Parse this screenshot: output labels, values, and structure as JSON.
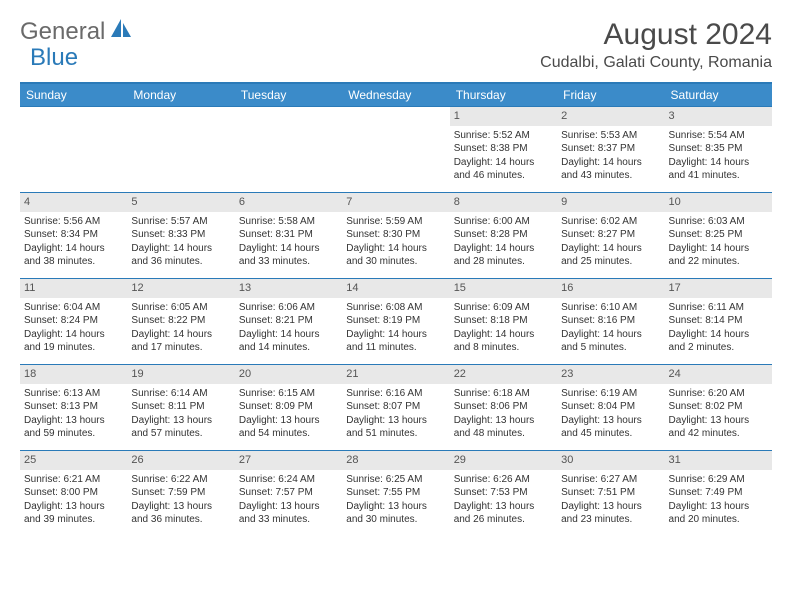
{
  "logo": {
    "text1": "General",
    "text2": "Blue"
  },
  "title": "August 2024",
  "location": "Cudalbi, Galati County, Romania",
  "day_headers": [
    "Sunday",
    "Monday",
    "Tuesday",
    "Wednesday",
    "Thursday",
    "Friday",
    "Saturday"
  ],
  "colors": {
    "brand_blue": "#2a7ab8",
    "header_blue": "#3b8bc9",
    "daynum_bg": "#e8e8e8",
    "text_gray": "#4a4a4a"
  },
  "weeks": [
    [
      null,
      null,
      null,
      null,
      {
        "n": "1",
        "rise": "Sunrise: 5:52 AM",
        "set": "Sunset: 8:38 PM",
        "dl1": "Daylight: 14 hours",
        "dl2": "and 46 minutes."
      },
      {
        "n": "2",
        "rise": "Sunrise: 5:53 AM",
        "set": "Sunset: 8:37 PM",
        "dl1": "Daylight: 14 hours",
        "dl2": "and 43 minutes."
      },
      {
        "n": "3",
        "rise": "Sunrise: 5:54 AM",
        "set": "Sunset: 8:35 PM",
        "dl1": "Daylight: 14 hours",
        "dl2": "and 41 minutes."
      }
    ],
    [
      {
        "n": "4",
        "rise": "Sunrise: 5:56 AM",
        "set": "Sunset: 8:34 PM",
        "dl1": "Daylight: 14 hours",
        "dl2": "and 38 minutes."
      },
      {
        "n": "5",
        "rise": "Sunrise: 5:57 AM",
        "set": "Sunset: 8:33 PM",
        "dl1": "Daylight: 14 hours",
        "dl2": "and 36 minutes."
      },
      {
        "n": "6",
        "rise": "Sunrise: 5:58 AM",
        "set": "Sunset: 8:31 PM",
        "dl1": "Daylight: 14 hours",
        "dl2": "and 33 minutes."
      },
      {
        "n": "7",
        "rise": "Sunrise: 5:59 AM",
        "set": "Sunset: 8:30 PM",
        "dl1": "Daylight: 14 hours",
        "dl2": "and 30 minutes."
      },
      {
        "n": "8",
        "rise": "Sunrise: 6:00 AM",
        "set": "Sunset: 8:28 PM",
        "dl1": "Daylight: 14 hours",
        "dl2": "and 28 minutes."
      },
      {
        "n": "9",
        "rise": "Sunrise: 6:02 AM",
        "set": "Sunset: 8:27 PM",
        "dl1": "Daylight: 14 hours",
        "dl2": "and 25 minutes."
      },
      {
        "n": "10",
        "rise": "Sunrise: 6:03 AM",
        "set": "Sunset: 8:25 PM",
        "dl1": "Daylight: 14 hours",
        "dl2": "and 22 minutes."
      }
    ],
    [
      {
        "n": "11",
        "rise": "Sunrise: 6:04 AM",
        "set": "Sunset: 8:24 PM",
        "dl1": "Daylight: 14 hours",
        "dl2": "and 19 minutes."
      },
      {
        "n": "12",
        "rise": "Sunrise: 6:05 AM",
        "set": "Sunset: 8:22 PM",
        "dl1": "Daylight: 14 hours",
        "dl2": "and 17 minutes."
      },
      {
        "n": "13",
        "rise": "Sunrise: 6:06 AM",
        "set": "Sunset: 8:21 PM",
        "dl1": "Daylight: 14 hours",
        "dl2": "and 14 minutes."
      },
      {
        "n": "14",
        "rise": "Sunrise: 6:08 AM",
        "set": "Sunset: 8:19 PM",
        "dl1": "Daylight: 14 hours",
        "dl2": "and 11 minutes."
      },
      {
        "n": "15",
        "rise": "Sunrise: 6:09 AM",
        "set": "Sunset: 8:18 PM",
        "dl1": "Daylight: 14 hours",
        "dl2": "and 8 minutes."
      },
      {
        "n": "16",
        "rise": "Sunrise: 6:10 AM",
        "set": "Sunset: 8:16 PM",
        "dl1": "Daylight: 14 hours",
        "dl2": "and 5 minutes."
      },
      {
        "n": "17",
        "rise": "Sunrise: 6:11 AM",
        "set": "Sunset: 8:14 PM",
        "dl1": "Daylight: 14 hours",
        "dl2": "and 2 minutes."
      }
    ],
    [
      {
        "n": "18",
        "rise": "Sunrise: 6:13 AM",
        "set": "Sunset: 8:13 PM",
        "dl1": "Daylight: 13 hours",
        "dl2": "and 59 minutes."
      },
      {
        "n": "19",
        "rise": "Sunrise: 6:14 AM",
        "set": "Sunset: 8:11 PM",
        "dl1": "Daylight: 13 hours",
        "dl2": "and 57 minutes."
      },
      {
        "n": "20",
        "rise": "Sunrise: 6:15 AM",
        "set": "Sunset: 8:09 PM",
        "dl1": "Daylight: 13 hours",
        "dl2": "and 54 minutes."
      },
      {
        "n": "21",
        "rise": "Sunrise: 6:16 AM",
        "set": "Sunset: 8:07 PM",
        "dl1": "Daylight: 13 hours",
        "dl2": "and 51 minutes."
      },
      {
        "n": "22",
        "rise": "Sunrise: 6:18 AM",
        "set": "Sunset: 8:06 PM",
        "dl1": "Daylight: 13 hours",
        "dl2": "and 48 minutes."
      },
      {
        "n": "23",
        "rise": "Sunrise: 6:19 AM",
        "set": "Sunset: 8:04 PM",
        "dl1": "Daylight: 13 hours",
        "dl2": "and 45 minutes."
      },
      {
        "n": "24",
        "rise": "Sunrise: 6:20 AM",
        "set": "Sunset: 8:02 PM",
        "dl1": "Daylight: 13 hours",
        "dl2": "and 42 minutes."
      }
    ],
    [
      {
        "n": "25",
        "rise": "Sunrise: 6:21 AM",
        "set": "Sunset: 8:00 PM",
        "dl1": "Daylight: 13 hours",
        "dl2": "and 39 minutes."
      },
      {
        "n": "26",
        "rise": "Sunrise: 6:22 AM",
        "set": "Sunset: 7:59 PM",
        "dl1": "Daylight: 13 hours",
        "dl2": "and 36 minutes."
      },
      {
        "n": "27",
        "rise": "Sunrise: 6:24 AM",
        "set": "Sunset: 7:57 PM",
        "dl1": "Daylight: 13 hours",
        "dl2": "and 33 minutes."
      },
      {
        "n": "28",
        "rise": "Sunrise: 6:25 AM",
        "set": "Sunset: 7:55 PM",
        "dl1": "Daylight: 13 hours",
        "dl2": "and 30 minutes."
      },
      {
        "n": "29",
        "rise": "Sunrise: 6:26 AM",
        "set": "Sunset: 7:53 PM",
        "dl1": "Daylight: 13 hours",
        "dl2": "and 26 minutes."
      },
      {
        "n": "30",
        "rise": "Sunrise: 6:27 AM",
        "set": "Sunset: 7:51 PM",
        "dl1": "Daylight: 13 hours",
        "dl2": "and 23 minutes."
      },
      {
        "n": "31",
        "rise": "Sunrise: 6:29 AM",
        "set": "Sunset: 7:49 PM",
        "dl1": "Daylight: 13 hours",
        "dl2": "and 20 minutes."
      }
    ]
  ]
}
